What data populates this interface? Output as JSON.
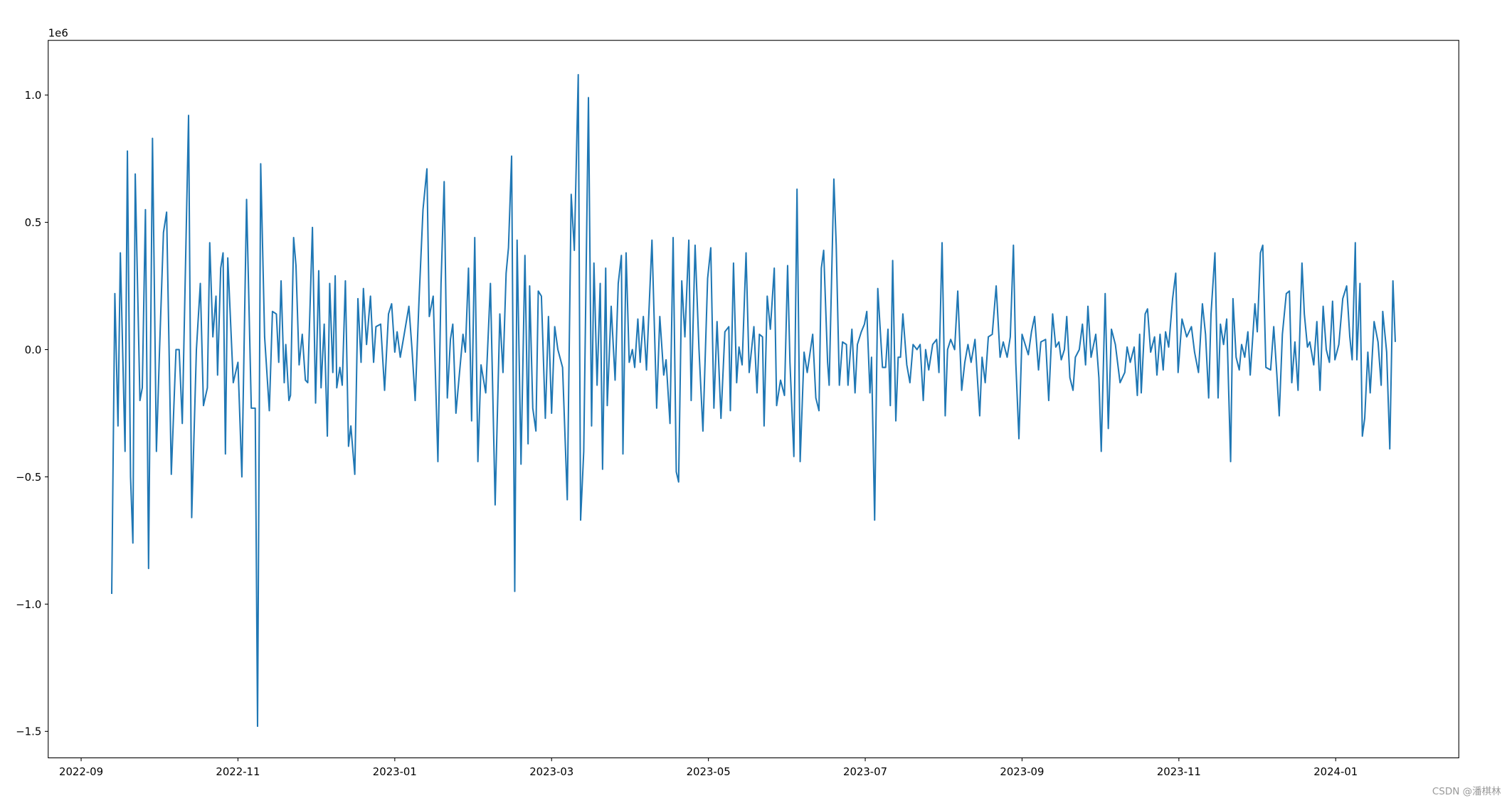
{
  "chart_data": {
    "type": "line",
    "color": "#1f77b4",
    "offset_label": "1e6",
    "watermark": "CSDN @潘棋林",
    "xlim": [
      -0.42,
      17.57
    ],
    "ylim": [
      -1.604,
      1.215
    ],
    "xticks": [
      {
        "value": 0,
        "label": "2022-09"
      },
      {
        "value": 2,
        "label": "2022-11"
      },
      {
        "value": 4,
        "label": "2023-01"
      },
      {
        "value": 6,
        "label": "2023-03"
      },
      {
        "value": 8,
        "label": "2023-05"
      },
      {
        "value": 10,
        "label": "2023-07"
      },
      {
        "value": 12,
        "label": "2023-09"
      },
      {
        "value": 14,
        "label": "2023-11"
      },
      {
        "value": 16,
        "label": "2024-01"
      }
    ],
    "yticks": [
      {
        "value": -1.5,
        "label": "−1.5"
      },
      {
        "value": -1.0,
        "label": "−1.0"
      },
      {
        "value": -0.5,
        "label": "−0.5"
      },
      {
        "value": 0,
        "label": "0.0"
      },
      {
        "value": 0.5,
        "label": "0.5"
      },
      {
        "value": 1.0,
        "label": "1.0"
      }
    ],
    "x": [
      0.39,
      0.43,
      0.47,
      0.5,
      0.56,
      0.59,
      0.63,
      0.66,
      0.69,
      0.75,
      0.78,
      0.82,
      0.86,
      0.91,
      0.96,
      1.0,
      1.05,
      1.09,
      1.15,
      1.21,
      1.25,
      1.29,
      1.37,
      1.41,
      1.47,
      1.52,
      1.56,
      1.61,
      1.64,
      1.68,
      1.72,
      1.74,
      1.78,
      1.81,
      1.84,
      1.87,
      1.94,
      2.0,
      2.05,
      2.11,
      2.17,
      2.22,
      2.25,
      2.29,
      2.34,
      2.4,
      2.44,
      2.49,
      2.52,
      2.55,
      2.59,
      2.61,
      2.65,
      2.67,
      2.71,
      2.74,
      2.78,
      2.82,
      2.86,
      2.89,
      2.95,
      2.99,
      3.03,
      3.06,
      3.1,
      3.14,
      3.17,
      3.21,
      3.24,
      3.26,
      3.3,
      3.33,
      3.37,
      3.41,
      3.44,
      3.49,
      3.53,
      3.57,
      3.6,
      3.64,
      3.69,
      3.73,
      3.76,
      3.82,
      3.87,
      3.92,
      3.96,
      4.0,
      4.03,
      4.07,
      4.12,
      4.18,
      4.22,
      4.26,
      4.31,
      4.36,
      4.41,
      4.44,
      4.49,
      4.55,
      4.59,
      4.63,
      4.67,
      4.71,
      4.74,
      4.78,
      4.82,
      4.87,
      4.9,
      4.94,
      4.98,
      5.02,
      5.06,
      5.1,
      5.16,
      5.22,
      5.28,
      5.34,
      5.38,
      5.42,
      5.45,
      5.49,
      5.53,
      5.56,
      5.61,
      5.66,
      5.7,
      5.72,
      5.76,
      5.8,
      5.83,
      5.87,
      5.92,
      5.96,
      6.0,
      6.04,
      6.08,
      6.14,
      6.2,
      6.25,
      6.29,
      6.34,
      6.37,
      6.41,
      6.47,
      6.51,
      6.54,
      6.58,
      6.62,
      6.65,
      6.69,
      6.71,
      6.76,
      6.81,
      6.85,
      6.89,
      6.91,
      6.95,
      6.99,
      7.03,
      7.06,
      7.1,
      7.13,
      7.17,
      7.21,
      7.28,
      7.34,
      7.38,
      7.43,
      7.46,
      7.51,
      7.55,
      7.59,
      7.62,
      7.66,
      7.7,
      7.75,
      7.78,
      7.83,
      7.88,
      7.93,
      7.99,
      8.03,
      8.07,
      8.11,
      8.16,
      8.21,
      8.26,
      8.28,
      8.32,
      8.36,
      8.39,
      8.43,
      8.48,
      8.52,
      8.58,
      8.62,
      8.65,
      8.69,
      8.71,
      8.75,
      8.79,
      8.84,
      8.87,
      8.92,
      8.97,
      9.01,
      9.04,
      9.09,
      9.13,
      9.17,
      9.22,
      9.26,
      9.33,
      9.37,
      9.41,
      9.44,
      9.47,
      9.52,
      9.54,
      9.6,
      9.63,
      9.67,
      9.71,
      9.76,
      9.78,
      9.83,
      9.87,
      9.9,
      9.95,
      9.99,
      10.02,
      10.06,
      10.08,
      10.12,
      10.16,
      10.22,
      10.26,
      10.29,
      10.32,
      10.35,
      10.39,
      10.42,
      10.45,
      10.48,
      10.53,
      10.57,
      10.61,
      10.66,
      10.7,
      10.74,
      10.77,
      10.81,
      10.86,
      10.91,
      10.94,
      10.98,
      11.02,
      11.05,
      11.09,
      11.14,
      11.18,
      11.23,
      11.27,
      11.31,
      11.35,
      11.4,
      11.46,
      11.49,
      11.53,
      11.57,
      11.62,
      11.67,
      11.72,
      11.76,
      11.81,
      11.85,
      11.89,
      11.92,
      11.96,
      12.0,
      12.05,
      12.08,
      12.12,
      12.16,
      12.21,
      12.24,
      12.3,
      12.34,
      12.39,
      12.43,
      12.47,
      12.5,
      12.54,
      12.57,
      12.61,
      12.65,
      12.68,
      12.73,
      12.77,
      12.81,
      12.84,
      12.88,
      12.94,
      12.98,
      13.01,
      13.06,
      13.1,
      13.14,
      13.19,
      13.25,
      13.31,
      13.34,
      13.38,
      13.43,
      13.47,
      13.5,
      13.52,
      13.57,
      13.6,
      13.64,
      13.69,
      13.72,
      13.76,
      13.8,
      13.83,
      13.87,
      13.92,
      13.96,
      13.99,
      14.04,
      14.1,
      14.16,
      14.2,
      14.25,
      14.3,
      14.34,
      14.38,
      14.41,
      14.46,
      14.5,
      14.53,
      14.57,
      14.61,
      14.66,
      14.69,
      14.73,
      14.77,
      14.8,
      14.84,
      14.88,
      14.91,
      14.97,
      15.0,
      15.04,
      15.07,
      15.11,
      15.17,
      15.21,
      15.25,
      15.28,
      15.32,
      15.37,
      15.41,
      15.44,
      15.48,
      15.52,
      15.57,
      15.6,
      15.64,
      15.67,
      15.72,
      15.76,
      15.8,
      15.84,
      15.88,
      15.92,
      15.96,
      15.99,
      16.04,
      16.09,
      16.14,
      16.18,
      16.21,
      16.25,
      16.27,
      16.31,
      16.34,
      16.37,
      16.41,
      16.44,
      16.49,
      16.54,
      16.58,
      16.6,
      16.65,
      16.69,
      16.73,
      16.76
    ],
    "values": [
      -0.96,
      0.22,
      -0.3,
      0.38,
      -0.4,
      0.78,
      -0.5,
      -0.76,
      0.69,
      -0.2,
      -0.15,
      0.55,
      -0.86,
      0.83,
      -0.4,
      0.0,
      0.46,
      0.54,
      -0.49,
      0.0,
      0.0,
      -0.29,
      0.92,
      -0.66,
      0.0,
      0.26,
      -0.22,
      -0.15,
      0.42,
      0.05,
      0.21,
      -0.1,
      0.32,
      0.38,
      -0.41,
      0.36,
      -0.13,
      -0.05,
      -0.5,
      0.59,
      -0.23,
      -0.23,
      -1.48,
      0.73,
      0.05,
      -0.24,
      0.15,
      0.14,
      -0.05,
      0.27,
      -0.13,
      0.02,
      -0.2,
      -0.18,
      0.44,
      0.33,
      -0.06,
      0.06,
      -0.12,
      -0.13,
      0.48,
      -0.21,
      0.31,
      -0.15,
      0.1,
      -0.34,
      0.26,
      -0.09,
      0.29,
      -0.15,
      -0.07,
      -0.14,
      0.27,
      -0.38,
      -0.3,
      -0.49,
      0.2,
      -0.05,
      0.24,
      0.02,
      0.21,
      -0.05,
      0.09,
      0.1,
      -0.16,
      0.14,
      0.18,
      -0.01,
      0.07,
      -0.03,
      0.06,
      0.17,
      0.0,
      -0.2,
      0.2,
      0.55,
      0.71,
      0.13,
      0.21,
      -0.44,
      0.26,
      0.66,
      -0.19,
      0.04,
      0.1,
      -0.25,
      -0.11,
      0.06,
      -0.01,
      0.32,
      -0.28,
      0.44,
      -0.44,
      -0.06,
      -0.17,
      0.26,
      -0.61,
      0.14,
      -0.09,
      0.3,
      0.4,
      0.76,
      -0.95,
      0.43,
      -0.45,
      0.37,
      -0.37,
      0.25,
      -0.23,
      -0.32,
      0.23,
      0.21,
      -0.27,
      0.13,
      -0.25,
      0.09,
      0.0,
      -0.07,
      -0.59,
      0.61,
      0.39,
      1.08,
      -0.67,
      -0.4,
      0.99,
      -0.3,
      0.34,
      -0.14,
      0.26,
      -0.47,
      0.32,
      -0.22,
      0.17,
      -0.12,
      0.26,
      0.37,
      -0.41,
      0.38,
      -0.05,
      0.0,
      -0.07,
      0.12,
      -0.05,
      0.13,
      -0.08,
      0.43,
      -0.23,
      0.13,
      -0.1,
      -0.04,
      -0.29,
      0.44,
      -0.48,
      -0.52,
      0.27,
      0.05,
      0.43,
      -0.2,
      0.41,
      0.0,
      -0.32,
      0.28,
      0.4,
      -0.23,
      0.11,
      -0.27,
      0.07,
      0.09,
      -0.24,
      0.34,
      -0.13,
      0.01,
      -0.06,
      0.38,
      -0.09,
      0.09,
      -0.17,
      0.06,
      0.05,
      -0.3,
      0.21,
      0.08,
      0.32,
      -0.22,
      -0.12,
      -0.18,
      0.33,
      -0.05,
      -0.42,
      0.63,
      -0.44,
      -0.01,
      -0.09,
      0.06,
      -0.19,
      -0.24,
      0.32,
      0.39,
      -0.05,
      -0.14,
      0.67,
      0.41,
      -0.14,
      0.03,
      0.02,
      -0.14,
      0.08,
      -0.17,
      0.02,
      0.07,
      0.1,
      0.15,
      -0.17,
      -0.03,
      -0.67,
      0.24,
      -0.07,
      -0.07,
      0.08,
      -0.22,
      0.35,
      -0.28,
      -0.03,
      -0.03,
      0.14,
      -0.06,
      -0.13,
      0.02,
      0.0,
      0.02,
      -0.2,
      0.0,
      -0.08,
      0.02,
      0.04,
      -0.09,
      0.42,
      -0.26,
      0.0,
      0.04,
      0.0,
      0.23,
      -0.16,
      -0.05,
      0.02,
      -0.05,
      0.04,
      -0.26,
      -0.03,
      -0.13,
      0.05,
      0.06,
      0.25,
      -0.03,
      0.03,
      -0.03,
      0.05,
      0.41,
      -0.05,
      -0.35,
      0.06,
      0.01,
      -0.02,
      0.07,
      0.13,
      -0.08,
      0.03,
      0.04,
      -0.2,
      0.14,
      0.01,
      0.03,
      -0.04,
      0.0,
      0.13,
      -0.11,
      -0.16,
      -0.03,
      0.0,
      0.1,
      -0.06,
      0.17,
      -0.03,
      0.06,
      -0.11,
      -0.4,
      0.22,
      -0.31,
      0.08,
      0.02,
      -0.13,
      -0.09,
      0.01,
      -0.05,
      0.01,
      -0.18,
      0.06,
      -0.17,
      0.14,
      0.16,
      -0.01,
      0.05,
      -0.1,
      0.06,
      -0.08,
      0.07,
      0.01,
      0.2,
      0.3,
      -0.09,
      0.12,
      0.05,
      0.09,
      -0.01,
      -0.09,
      0.18,
      0.06,
      -0.19,
      0.14,
      0.38,
      -0.19,
      0.1,
      0.02,
      0.12,
      -0.44,
      0.2,
      -0.03,
      -0.08,
      0.02,
      -0.03,
      0.07,
      -0.1,
      0.18,
      0.07,
      0.38,
      0.41,
      -0.07,
      -0.08,
      0.09,
      -0.1,
      -0.26,
      0.06,
      0.22,
      0.23,
      -0.13,
      0.03,
      -0.16,
      0.34,
      0.14,
      0.01,
      0.03,
      -0.06,
      0.11,
      -0.16,
      0.17,
      0.0,
      -0.05,
      0.19,
      -0.04,
      0.02,
      0.2,
      0.25,
      0.05,
      -0.04,
      0.42,
      -0.04,
      0.26,
      -0.34,
      -0.27,
      -0.01,
      -0.17,
      0.11,
      0.03,
      -0.14,
      0.15,
      -0.01,
      -0.39,
      0.27,
      0.03
    ]
  }
}
